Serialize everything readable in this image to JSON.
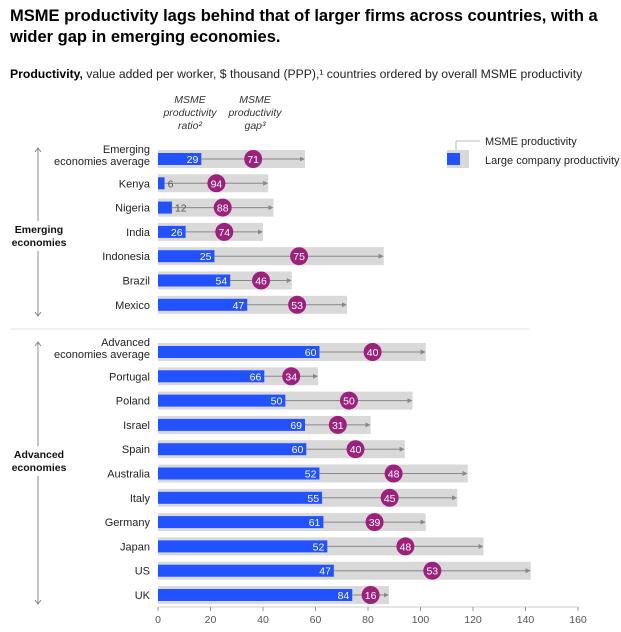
{
  "header": {
    "title": "MSME productivity lags behind that of larger firms across countries, with a wider gap in emerging economies.",
    "subtitle_bold": "Productivity,",
    "subtitle_rest": " value added per worker, $ thousand (PPP),¹ countries ordered by overall MSME productivity"
  },
  "column_headers": {
    "ratio": [
      "MSME",
      "productivity",
      "ratio²"
    ],
    "gap": [
      "MSME",
      "productivity",
      "gap³"
    ]
  },
  "legend": {
    "msme": "MSME productivity",
    "large": "Large company productivity"
  },
  "colors": {
    "msme_bar": "#2251ff",
    "large_bar": "#d9d9d9",
    "gap_circle": "#9c217d",
    "arrow": "#888888"
  },
  "chart_data": {
    "type": "bar",
    "xlim": [
      0,
      160
    ],
    "x_ticks": [
      "0",
      "20",
      "40",
      "60",
      "80",
      "100",
      "120",
      "140",
      "160"
    ],
    "groups": [
      {
        "name": "Emerging economies",
        "label_lines": [
          "Emerging",
          "economies"
        ],
        "rows": [
          {
            "country_lines": [
              "Emerging",
              "economies average"
            ],
            "msme": 16.5,
            "large": 56,
            "ratio": "29",
            "gap": "71"
          },
          {
            "country_lines": [
              "Kenya"
            ],
            "msme": 2.5,
            "large": 42,
            "ratio": "6",
            "gap": "94"
          },
          {
            "country_lines": [
              "Nigeria"
            ],
            "msme": 5.3,
            "large": 44,
            "ratio": "12",
            "gap": "88"
          },
          {
            "country_lines": [
              "India"
            ],
            "msme": 10.5,
            "large": 40,
            "ratio": "26",
            "gap": "74"
          },
          {
            "country_lines": [
              "Indonesia"
            ],
            "msme": 21.5,
            "large": 86,
            "ratio": "25",
            "gap": "75"
          },
          {
            "country_lines": [
              "Brazil"
            ],
            "msme": 27.5,
            "large": 51,
            "ratio": "54",
            "gap": "46"
          },
          {
            "country_lines": [
              "Mexico"
            ],
            "msme": 34,
            "large": 72,
            "ratio": "47",
            "gap": "53"
          }
        ]
      },
      {
        "name": "Advanced economies",
        "label_lines": [
          "Advanced",
          "economies"
        ],
        "rows": [
          {
            "country_lines": [
              "Advanced",
              "economies average"
            ],
            "msme": 61.5,
            "large": 102,
            "ratio": "60",
            "gap": "40"
          },
          {
            "country_lines": [
              "Portugal"
            ],
            "msme": 40.5,
            "large": 61,
            "ratio": "66",
            "gap": "34"
          },
          {
            "country_lines": [
              "Poland"
            ],
            "msme": 48.5,
            "large": 97,
            "ratio": "50",
            "gap": "50"
          },
          {
            "country_lines": [
              "Israel"
            ],
            "msme": 56,
            "large": 81,
            "ratio": "69",
            "gap": "31"
          },
          {
            "country_lines": [
              "Spain"
            ],
            "msme": 56.5,
            "large": 94,
            "ratio": "60",
            "gap": "40"
          },
          {
            "country_lines": [
              "Australia"
            ],
            "msme": 61.5,
            "large": 118,
            "ratio": "52",
            "gap": "48"
          },
          {
            "country_lines": [
              "Italy"
            ],
            "msme": 62.5,
            "large": 114,
            "ratio": "55",
            "gap": "45"
          },
          {
            "country_lines": [
              "Germany"
            ],
            "msme": 63,
            "large": 102,
            "ratio": "61",
            "gap": "39"
          },
          {
            "country_lines": [
              "Japan"
            ],
            "msme": 64.5,
            "large": 124,
            "ratio": "52",
            "gap": "48"
          },
          {
            "country_lines": [
              "US"
            ],
            "msme": 67,
            "large": 142,
            "ratio": "47",
            "gap": "53"
          },
          {
            "country_lines": [
              "UK"
            ],
            "msme": 74,
            "large": 88,
            "ratio": "84",
            "gap": "16"
          }
        ]
      }
    ]
  }
}
